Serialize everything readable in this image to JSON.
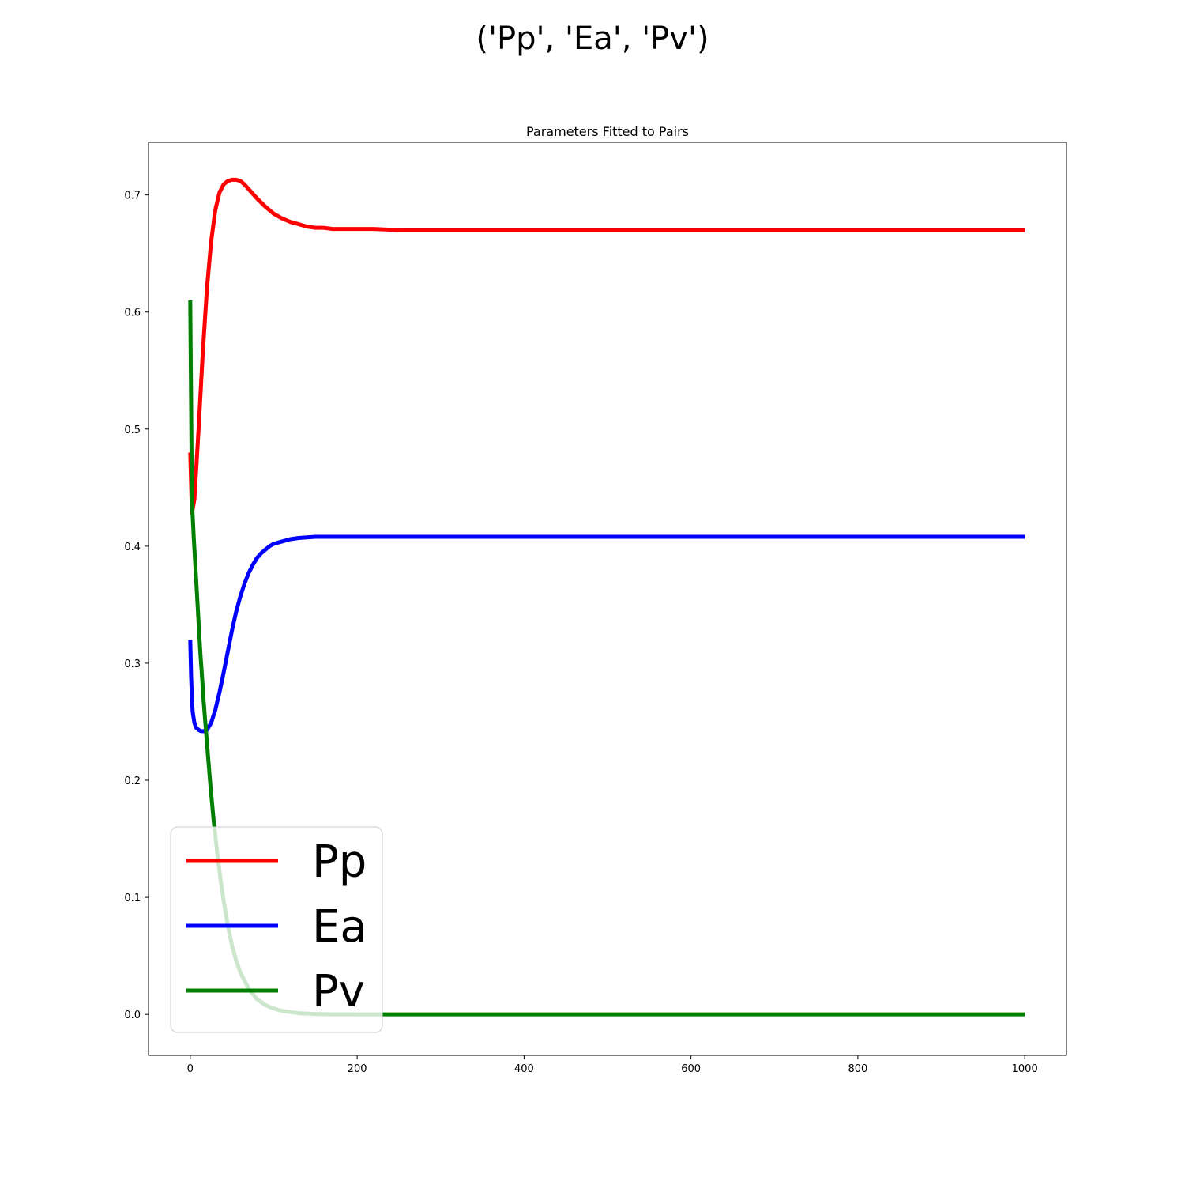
{
  "figure": {
    "suptitle": "('Pp', 'Ea', 'Pv')"
  },
  "chart_data": {
    "type": "line",
    "title": "Parameters Fitted to Pairs",
    "xlabel": "",
    "ylabel": "",
    "xlim": [
      -50,
      1050
    ],
    "ylim": [
      -0.035,
      0.745
    ],
    "x_ticks": [
      0,
      200,
      400,
      600,
      800,
      1000
    ],
    "x_tick_labels": [
      "0",
      "200",
      "400",
      "600",
      "800",
      "1000"
    ],
    "y_ticks": [
      0.0,
      0.1,
      0.2,
      0.3,
      0.4,
      0.5,
      0.6,
      0.7
    ],
    "y_tick_labels": [
      "0.0",
      "0.1",
      "0.2",
      "0.3",
      "0.4",
      "0.5",
      "0.6",
      "0.7"
    ],
    "grid": false,
    "legend_position": "lower-left",
    "series": [
      {
        "name": "Pp",
        "color": "#ff0000",
        "x": [
          0,
          2,
          5,
          10,
          15,
          20,
          25,
          30,
          35,
          40,
          45,
          50,
          55,
          60,
          65,
          70,
          80,
          90,
          100,
          110,
          120,
          130,
          140,
          150,
          160,
          170,
          180,
          200,
          220,
          250,
          300,
          400,
          500,
          600,
          700,
          800,
          900,
          1000
        ],
        "y": [
          0.48,
          0.428,
          0.44,
          0.5,
          0.565,
          0.62,
          0.66,
          0.687,
          0.702,
          0.709,
          0.712,
          0.713,
          0.713,
          0.712,
          0.709,
          0.705,
          0.697,
          0.69,
          0.684,
          0.68,
          0.677,
          0.675,
          0.673,
          0.672,
          0.672,
          0.671,
          0.671,
          0.671,
          0.671,
          0.67,
          0.67,
          0.67,
          0.67,
          0.67,
          0.67,
          0.67,
          0.67,
          0.67
        ]
      },
      {
        "name": "Ea",
        "color": "#0000ff",
        "x": [
          0,
          1,
          2,
          3,
          5,
          7,
          10,
          13,
          16,
          20,
          25,
          30,
          35,
          40,
          45,
          50,
          55,
          60,
          65,
          70,
          75,
          80,
          85,
          90,
          95,
          100,
          110,
          120,
          130,
          140,
          150,
          160,
          170,
          180,
          190,
          200,
          220,
          250,
          300,
          400,
          500,
          600,
          700,
          800,
          900,
          1000
        ],
        "y": [
          0.32,
          0.29,
          0.27,
          0.258,
          0.249,
          0.245,
          0.243,
          0.242,
          0.242,
          0.243,
          0.249,
          0.26,
          0.275,
          0.292,
          0.31,
          0.328,
          0.344,
          0.357,
          0.368,
          0.377,
          0.384,
          0.39,
          0.394,
          0.397,
          0.4,
          0.402,
          0.404,
          0.406,
          0.407,
          0.4075,
          0.408,
          0.408,
          0.408,
          0.408,
          0.408,
          0.408,
          0.408,
          0.408,
          0.408,
          0.408,
          0.408,
          0.408,
          0.408,
          0.408,
          0.408,
          0.408
        ]
      },
      {
        "name": "Pv",
        "color": "#008000",
        "x": [
          0,
          2,
          4,
          6,
          8,
          10,
          12,
          14,
          16,
          18,
          20,
          24,
          28,
          32,
          36,
          40,
          45,
          50,
          55,
          60,
          70,
          80,
          90,
          100,
          110,
          120,
          130,
          140,
          150,
          160,
          170,
          180,
          200,
          220,
          250,
          300,
          400,
          500,
          600,
          700,
          800,
          900,
          1000
        ],
        "y": [
          0.61,
          0.44,
          0.41,
          0.385,
          0.36,
          0.335,
          0.31,
          0.29,
          0.268,
          0.25,
          0.232,
          0.197,
          0.166,
          0.14,
          0.117,
          0.097,
          0.076,
          0.059,
          0.046,
          0.036,
          0.022,
          0.013,
          0.008,
          0.005,
          0.003,
          0.002,
          0.001,
          0.0007,
          0.0004,
          0.0002,
          0.0001,
          0.0001,
          0.0,
          0.0,
          0.0,
          0.0,
          0.0,
          0.0,
          0.0,
          0.0,
          0.0,
          0.0,
          0.0
        ]
      }
    ]
  }
}
